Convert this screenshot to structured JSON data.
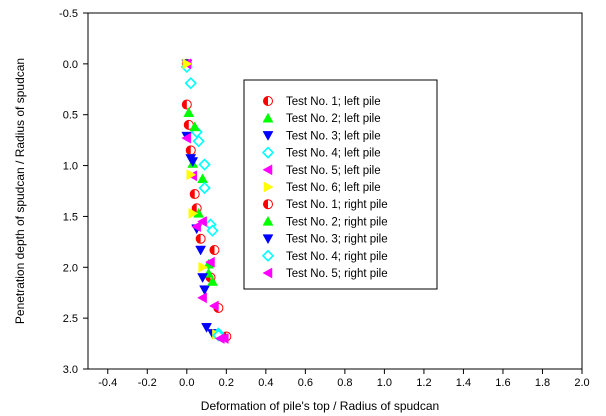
{
  "chart_data": {
    "type": "scatter",
    "title": "",
    "xlabel": "Deformation of pile's top / Radius of spudcan",
    "ylabel": "Penetration depth of spudcan / Radius of spudcan",
    "xlim": [
      -0.5,
      2.0
    ],
    "ylim": [
      3.0,
      -0.5
    ],
    "y_inverted": true,
    "xticks": [
      "-0.4",
      "-0.2",
      "0.0",
      "0.2",
      "0.4",
      "0.6",
      "0.8",
      "1.0",
      "1.2",
      "1.4",
      "1.6",
      "1.8",
      "2.0"
    ],
    "yticks": [
      "-0.5",
      "0.0",
      "0.5",
      "1.0",
      "1.5",
      "2.0",
      "2.5",
      "3.0"
    ],
    "grid": false,
    "legend_position": "center-right",
    "series": [
      {
        "name": "Test No. 1; left pile",
        "marker": "half-circle",
        "color": "#ff0000",
        "x": [
          0.0,
          0.0,
          0.02,
          0.05,
          0.12,
          0.2
        ],
        "y": [
          0.0,
          0.4,
          0.85,
          1.42,
          2.1,
          2.68
        ]
      },
      {
        "name": "Test No. 2; left pile",
        "marker": "triangle-up",
        "color": "#00ff00",
        "x": [
          0.0,
          0.01,
          0.03,
          0.06,
          0.11,
          0.16
        ],
        "y": [
          0.0,
          0.48,
          0.98,
          1.47,
          1.97,
          2.66
        ]
      },
      {
        "name": "Test No. 3; left pile",
        "marker": "triangle-down",
        "color": "#0000ff",
        "x": [
          0.0,
          0.0,
          0.03,
          0.05,
          0.09,
          0.13
        ],
        "y": [
          0.0,
          0.71,
          0.96,
          1.62,
          2.22,
          2.65
        ]
      },
      {
        "name": "Test No. 4; left pile",
        "marker": "diamond",
        "color": "#00ffff",
        "x": [
          0.0,
          0.02,
          0.05,
          0.09,
          0.12,
          0.16
        ],
        "y": [
          0.03,
          0.19,
          0.67,
          0.99,
          1.58,
          2.65
        ]
      },
      {
        "name": "Test No. 5; left pile",
        "marker": "triangle-left",
        "color": "#ff00ff",
        "x": [
          0.0,
          0.0,
          0.03,
          0.05,
          0.08,
          0.19
        ],
        "y": [
          0.0,
          0.73,
          1.1,
          1.6,
          2.3,
          2.7
        ]
      },
      {
        "name": "Test No. 6; left pile",
        "marker": "triangle-right",
        "color": "#ffff00",
        "x": [
          0.0,
          0.02,
          0.03,
          0.08,
          0.15
        ],
        "y": [
          0.0,
          1.09,
          1.47,
          2.0,
          2.66
        ]
      },
      {
        "name": "Test No. 1; right pile",
        "marker": "half-circle",
        "color": "#ff0000",
        "x": [
          0.01,
          0.04,
          0.07,
          0.14,
          0.16
        ],
        "y": [
          0.6,
          1.28,
          1.72,
          1.83,
          2.4
        ]
      },
      {
        "name": "Test No. 2; right pile",
        "marker": "triangle-up",
        "color": "#00ff00",
        "x": [
          0.04,
          0.08,
          0.11,
          0.13
        ],
        "y": [
          0.62,
          1.13,
          2.06,
          2.14
        ]
      },
      {
        "name": "Test No. 3; right pile",
        "marker": "triangle-down",
        "color": "#0000ff",
        "x": [
          0.02,
          0.07,
          0.08,
          0.1
        ],
        "y": [
          0.93,
          1.83,
          2.1,
          2.59
        ]
      },
      {
        "name": "Test No. 4; right pile",
        "marker": "diamond",
        "color": "#00ffff",
        "x": [
          0.06,
          0.09,
          0.13,
          0.16
        ],
        "y": [
          0.76,
          1.22,
          1.64,
          2.67
        ]
      },
      {
        "name": "Test No. 5; right pile",
        "marker": "triangle-left",
        "color": "#ff00ff",
        "x": [
          0.08,
          0.12,
          0.14,
          0.17
        ],
        "y": [
          1.55,
          1.95,
          2.38,
          2.7
        ]
      }
    ]
  }
}
